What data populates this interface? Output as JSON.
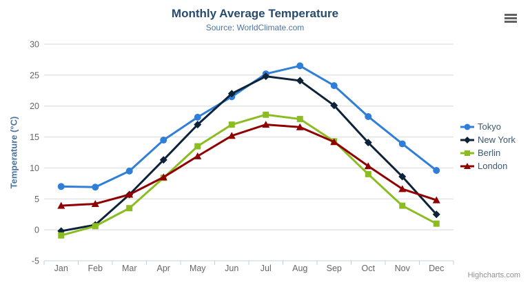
{
  "header": {
    "title": "Monthly Average Temperature",
    "subtitle": "Source: WorldClimate.com"
  },
  "toolbar": {
    "context_menu_icon": "hamburger-icon"
  },
  "credits": {
    "label": "Highcharts.com"
  },
  "chart_data": {
    "type": "line",
    "title": "Monthly Average Temperature",
    "subtitle": "Source: WorldClimate.com",
    "categories": [
      "Jan",
      "Feb",
      "Mar",
      "Apr",
      "May",
      "Jun",
      "Jul",
      "Aug",
      "Sep",
      "Oct",
      "Nov",
      "Dec"
    ],
    "xlabel": "",
    "ylabel": "Temperature (°C)",
    "ylim": [
      -5,
      30
    ],
    "yticks": [
      -5,
      0,
      5,
      10,
      15,
      20,
      25,
      30
    ],
    "grid": true,
    "legend_position": "right",
    "colors": {
      "grid_line": "#d8d8d8",
      "axis_line": "#c0d0e0",
      "axis_label": "#666666",
      "title": "#274b6d",
      "subtitle": "#4d759e",
      "legend_text": "#3e576f"
    },
    "series": [
      {
        "name": "Tokyo",
        "color": "#2f7ed8",
        "marker": "circle",
        "values": [
          7.0,
          6.9,
          9.5,
          14.5,
          18.2,
          21.5,
          25.2,
          26.5,
          23.3,
          18.3,
          13.9,
          9.6
        ]
      },
      {
        "name": "New York",
        "color": "#0d233a",
        "marker": "diamond",
        "values": [
          -0.2,
          0.8,
          5.7,
          11.3,
          17.0,
          22.0,
          24.8,
          24.1,
          20.1,
          14.1,
          8.6,
          2.5
        ]
      },
      {
        "name": "Berlin",
        "color": "#8bbc21",
        "marker": "square",
        "values": [
          -0.9,
          0.6,
          3.5,
          8.4,
          13.5,
          17.0,
          18.6,
          17.9,
          14.3,
          9.0,
          3.9,
          1.0
        ]
      },
      {
        "name": "London",
        "color": "#910000",
        "marker": "triangle",
        "values": [
          3.9,
          4.2,
          5.7,
          8.5,
          11.9,
          15.2,
          17.0,
          16.6,
          14.2,
          10.3,
          6.6,
          4.8
        ]
      }
    ]
  }
}
